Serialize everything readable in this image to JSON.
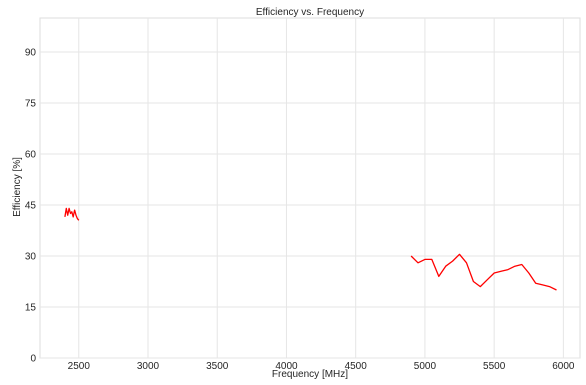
{
  "chart_data": {
    "type": "line",
    "title": "Efficiency vs. Frequency",
    "xlabel": "Frequency [MHz]",
    "ylabel": "Efficiency [%]",
    "xlim": [
      2220,
      6120
    ],
    "ylim": [
      0,
      100
    ],
    "xticks": [
      2500,
      3000,
      3500,
      4000,
      4500,
      5000,
      5500,
      6000
    ],
    "yticks": [
      0,
      15,
      30,
      45,
      60,
      75,
      90
    ],
    "grid": true,
    "legend": "none",
    "series": [
      {
        "color": "#ff0000",
        "segments": [
          {
            "x": [
              2400,
              2410,
              2420,
              2430,
              2440,
              2450,
              2460,
              2470,
              2480,
              2490,
              2500
            ],
            "y": [
              41.5,
              44.0,
              42.0,
              44.0,
              42.5,
              43.0,
              41.5,
              43.5,
              42.0,
              41.0,
              40.5
            ]
          },
          {
            "x": [
              4900,
              4950,
              5000,
              5050,
              5100,
              5150,
              5200,
              5250,
              5300,
              5350,
              5400,
              5450,
              5500,
              5550,
              5600,
              5650,
              5700,
              5750,
              5800,
              5850,
              5900,
              5950
            ],
            "y": [
              30.0,
              28.0,
              29.0,
              29.0,
              24.0,
              27.0,
              28.5,
              30.5,
              28.0,
              22.5,
              21.0,
              23.0,
              25.0,
              25.5,
              26.0,
              27.0,
              27.5,
              25.0,
              22.0,
              21.5,
              21.0,
              20.0
            ]
          }
        ]
      }
    ]
  }
}
